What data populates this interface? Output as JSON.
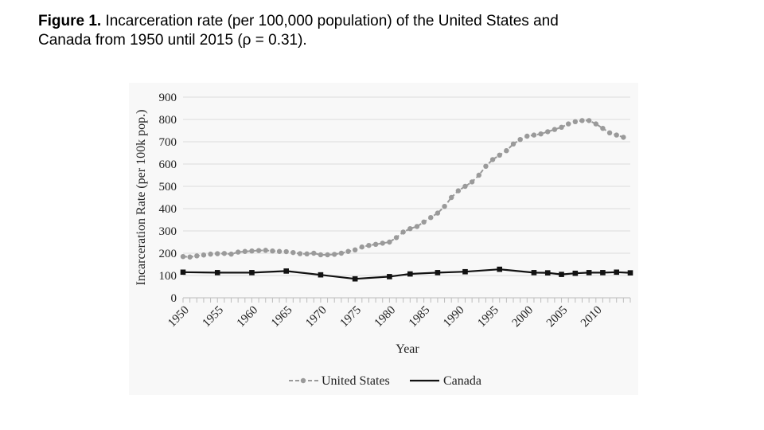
{
  "caption": {
    "label": "Figure 1.",
    "text": " Incarceration rate (per 100,000 population) of the United States and Canada from 1950 until 2015 (ρ = 0.31)."
  },
  "chart_data": {
    "type": "line",
    "title": "",
    "xlabel": "Year",
    "ylabel": "Incarceration Rate (per 100k pop.)",
    "xlim": [
      1950,
      2015
    ],
    "ylim": [
      0,
      900
    ],
    "yticks": [
      0,
      100,
      200,
      300,
      400,
      500,
      600,
      700,
      800,
      900
    ],
    "xtick_labels": [
      "1950",
      "1955",
      "1960",
      "1965",
      "1970",
      "1975",
      "1980",
      "1985",
      "1990",
      "1995",
      "2000",
      "2005",
      "2010"
    ],
    "grid": "horizontal",
    "legend_position": "bottom",
    "series": [
      {
        "name": "United States",
        "style": "dashed-dots",
        "color": "#9a9a9a",
        "x": [
          1950,
          1951,
          1952,
          1953,
          1954,
          1955,
          1956,
          1957,
          1958,
          1959,
          1960,
          1961,
          1962,
          1963,
          1964,
          1965,
          1966,
          1967,
          1968,
          1969,
          1970,
          1971,
          1972,
          1973,
          1974,
          1975,
          1976,
          1977,
          1978,
          1979,
          1980,
          1981,
          1982,
          1983,
          1984,
          1985,
          1986,
          1987,
          1988,
          1989,
          1990,
          1991,
          1992,
          1993,
          1994,
          1995,
          1996,
          1997,
          1998,
          1999,
          2000,
          2001,
          2002,
          2003,
          2004,
          2005,
          2006,
          2007,
          2008,
          2009,
          2010,
          2011,
          2012,
          2013,
          2014
        ],
        "values": [
          185,
          183,
          188,
          192,
          196,
          198,
          199,
          196,
          205,
          208,
          210,
          212,
          213,
          210,
          208,
          207,
          203,
          198,
          197,
          200,
          193,
          193,
          195,
          200,
          208,
          215,
          228,
          235,
          240,
          245,
          250,
          270,
          295,
          310,
          320,
          340,
          360,
          380,
          410,
          450,
          480,
          500,
          520,
          550,
          590,
          620,
          640,
          660,
          690,
          710,
          725,
          730,
          735,
          745,
          755,
          765,
          780,
          790,
          795,
          795,
          780,
          760,
          740,
          730,
          720
        ]
      },
      {
        "name": "Canada",
        "style": "solid-squares",
        "color": "#111111",
        "x": [
          1950,
          1955,
          1960,
          1965,
          1970,
          1975,
          1980,
          1983,
          1987,
          1991,
          1996,
          2001,
          2003,
          2005,
          2007,
          2009,
          2011,
          2013,
          2015
        ],
        "values": [
          115,
          113,
          113,
          120,
          103,
          85,
          95,
          107,
          113,
          117,
          128,
          113,
          112,
          105,
          110,
          113,
          113,
          115,
          112
        ]
      }
    ]
  }
}
